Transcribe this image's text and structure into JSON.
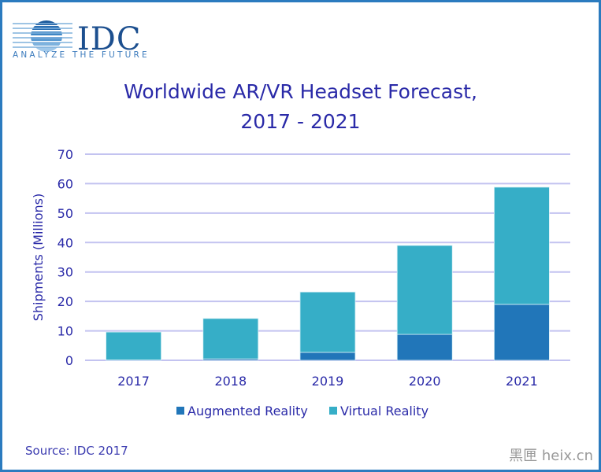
{
  "logo": {
    "name": "IDC",
    "tagline": "ANALYZE THE FUTURE"
  },
  "title_line1": "Worldwide AR/VR Headset Forecast,",
  "title_line2": "2017 - 2021",
  "source": "Source: IDC 2017",
  "watermark": "黑匣 heix.cn",
  "colors": {
    "augmented_reality": "#2176b9",
    "virtual_reality": "#36aec7",
    "text": "#2a2aa8",
    "grid": "#c3c3f0",
    "border": "#2b7bbf"
  },
  "chart_data": {
    "type": "bar",
    "stacked": true,
    "title": "Worldwide AR/VR Headset Forecast, 2017 - 2021",
    "xlabel": "",
    "ylabel": "Shipments (Millions)",
    "ylim": [
      0,
      70
    ],
    "yticks": [
      0,
      10,
      20,
      30,
      40,
      50,
      60,
      70
    ],
    "grid": true,
    "legend_position": "bottom",
    "categories": [
      "2017",
      "2018",
      "2019",
      "2020",
      "2021"
    ],
    "series": [
      {
        "name": "Augmented Reality",
        "values": [
          0.1,
          0.5,
          2.7,
          8.8,
          19.0
        ]
      },
      {
        "name": "Virtual Reality",
        "values": [
          9.5,
          13.7,
          20.5,
          30.2,
          39.8
        ]
      }
    ]
  }
}
